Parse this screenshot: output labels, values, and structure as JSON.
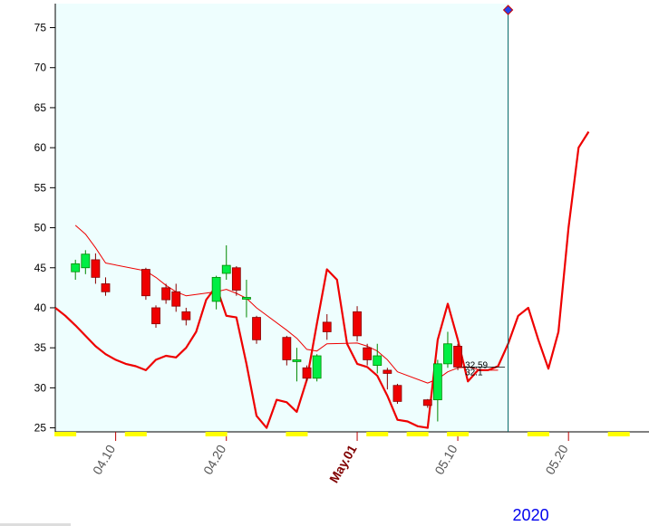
{
  "chart_data": {
    "type": "candlestick",
    "ylim": [
      24.5,
      78
    ],
    "yticks": [
      25,
      30,
      35,
      40,
      45,
      50,
      55,
      60,
      65,
      70,
      75
    ],
    "x_domain": [
      0,
      59
    ],
    "x_tick_labels": [
      {
        "x": 6,
        "label": "04.10",
        "highlight": false
      },
      {
        "x": 17,
        "label": "04.20",
        "highlight": false
      },
      {
        "x": 30,
        "label": "May.01",
        "highlight": true
      },
      {
        "x": 40,
        "label": "05.10",
        "highlight": false
      },
      {
        "x": 51,
        "label": "05.20",
        "highlight": false
      }
    ],
    "year_label": "2020",
    "shaded_until_x": 45,
    "cursor_x": 45,
    "price_labels": [
      "32.59",
      "32.1"
    ],
    "weekend_markers_x": [
      1,
      8,
      16,
      24,
      32,
      36,
      40,
      48,
      56
    ],
    "candles": [
      {
        "x": 2,
        "open": 44.5,
        "high": 46,
        "low": 43.5,
        "close": 45.5
      },
      {
        "x": 3,
        "open": 45,
        "high": 47.2,
        "low": 44.2,
        "close": 46.7
      },
      {
        "x": 4,
        "open": 46,
        "high": 46.8,
        "low": 43,
        "close": 43.8
      },
      {
        "x": 5,
        "open": 43,
        "high": 43.8,
        "low": 41.5,
        "close": 42
      },
      {
        "x": 9,
        "open": 44.8,
        "high": 45,
        "low": 41,
        "close": 41.5
      },
      {
        "x": 10,
        "open": 40,
        "high": 40.3,
        "low": 37.5,
        "close": 38
      },
      {
        "x": 11,
        "open": 42.5,
        "high": 43,
        "low": 40.5,
        "close": 41
      },
      {
        "x": 12,
        "open": 42,
        "high": 43,
        "low": 39.5,
        "close": 40.2
      },
      {
        "x": 13,
        "open": 39.5,
        "high": 40,
        "low": 37.8,
        "close": 38.5
      },
      {
        "x": 16,
        "open": 40.8,
        "high": 44,
        "low": 39.8,
        "close": 43.8
      },
      {
        "x": 17,
        "open": 44.3,
        "high": 47.8,
        "low": 43.5,
        "close": 45.3
      },
      {
        "x": 18,
        "open": 45,
        "high": 45.2,
        "low": 41.5,
        "close": 42.2
      },
      {
        "x": 19,
        "open": 41.2,
        "high": 43.5,
        "low": 38.8,
        "close": 41.3
      },
      {
        "x": 20,
        "open": 38.8,
        "high": 39,
        "low": 35.5,
        "close": 36
      },
      {
        "x": 23,
        "open": 36.3,
        "high": 36.5,
        "low": 32.8,
        "close": 33.5
      },
      {
        "x": 24,
        "open": 33.4,
        "high": 35,
        "low": 30.8,
        "close": 33.5
      },
      {
        "x": 25,
        "open": 32.5,
        "high": 32.8,
        "low": 30.8,
        "close": 31.2
      },
      {
        "x": 26,
        "open": 31.2,
        "high": 34.2,
        "low": 30.8,
        "close": 34
      },
      {
        "x": 27,
        "open": 38.2,
        "high": 39.2,
        "low": 36,
        "close": 37
      },
      {
        "x": 30,
        "open": 39.5,
        "high": 40.2,
        "low": 35.8,
        "close": 36.5
      },
      {
        "x": 31,
        "open": 35,
        "high": 35.5,
        "low": 32.8,
        "close": 33.5
      },
      {
        "x": 32,
        "open": 32.8,
        "high": 35.5,
        "low": 31.8,
        "close": 34
      },
      {
        "x": 33,
        "open": 32.2,
        "high": 32.5,
        "low": 29.8,
        "close": 31.8
      },
      {
        "x": 34,
        "open": 30.3,
        "high": 30.5,
        "low": 28,
        "close": 28.3
      },
      {
        "x": 37,
        "open": 28.5,
        "high": 28.6,
        "low": 27.5,
        "close": 27.8
      },
      {
        "x": 38,
        "open": 28.5,
        "high": 33.5,
        "low": 25.8,
        "close": 33
      },
      {
        "x": 39,
        "open": 33,
        "high": 37,
        "low": 32.5,
        "close": 35.5
      },
      {
        "x": 40,
        "open": 35.2,
        "high": 35.5,
        "low": 32.2,
        "close": 32.6
      }
    ],
    "series": [
      {
        "color": "#ee0000",
        "width": 1,
        "points": [
          [
            2,
            50.3
          ],
          [
            3,
            49.2
          ],
          [
            4,
            47.5
          ],
          [
            5,
            45.6
          ],
          [
            9,
            44.6
          ],
          [
            10,
            43.8
          ],
          [
            11,
            42.8
          ],
          [
            12,
            42
          ],
          [
            13,
            41.5
          ],
          [
            16,
            42
          ],
          [
            17,
            42.3
          ],
          [
            18,
            41.8
          ],
          [
            19,
            41.2
          ],
          [
            20,
            40
          ],
          [
            23,
            37.2
          ],
          [
            24,
            36.2
          ],
          [
            25,
            34.8
          ],
          [
            26,
            34.6
          ],
          [
            27,
            35.5
          ],
          [
            30,
            35.6
          ],
          [
            31,
            35.2
          ],
          [
            32,
            34.6
          ],
          [
            33,
            33.5
          ],
          [
            34,
            32
          ],
          [
            37,
            30.6
          ],
          [
            38,
            31.1
          ],
          [
            39,
            32
          ],
          [
            40,
            32.5
          ],
          [
            41,
            32.6
          ],
          [
            42,
            32.3
          ],
          [
            43,
            32.2
          ],
          [
            44,
            32.2
          ]
        ]
      },
      {
        "color": "#ee0000",
        "width": 2.2,
        "points": [
          [
            0,
            40
          ],
          [
            1,
            39
          ],
          [
            2,
            37.8
          ],
          [
            3,
            36.5
          ],
          [
            4,
            35.2
          ],
          [
            5,
            34.2
          ],
          [
            6,
            33.5
          ],
          [
            7,
            33
          ],
          [
            8,
            32.7
          ],
          [
            9,
            32.2
          ],
          [
            10,
            33.5
          ],
          [
            11,
            34
          ],
          [
            12,
            33.8
          ],
          [
            13,
            35
          ],
          [
            14,
            37
          ],
          [
            15,
            41
          ],
          [
            16,
            42.7
          ],
          [
            17,
            39
          ],
          [
            18,
            38.8
          ],
          [
            19,
            33
          ],
          [
            20,
            26.5
          ],
          [
            21,
            25
          ],
          [
            22,
            28.5
          ],
          [
            23,
            28.2
          ],
          [
            24,
            27
          ],
          [
            25,
            31
          ],
          [
            26,
            38
          ],
          [
            27,
            44.8
          ],
          [
            28,
            43.5
          ],
          [
            29,
            35.5
          ],
          [
            30,
            33
          ],
          [
            31,
            32.6
          ],
          [
            32,
            31.5
          ],
          [
            33,
            29
          ],
          [
            34,
            26
          ],
          [
            35,
            25.8
          ],
          [
            36,
            25.2
          ],
          [
            37,
            25
          ],
          [
            38,
            36
          ],
          [
            39,
            40.5
          ],
          [
            40,
            36
          ],
          [
            41,
            30.8
          ],
          [
            42,
            32.2
          ],
          [
            43,
            32.2
          ],
          [
            44,
            32.7
          ],
          [
            45,
            35.5
          ],
          [
            46,
            39
          ],
          [
            47,
            40
          ],
          [
            48,
            36
          ],
          [
            49,
            32.4
          ],
          [
            50,
            37
          ],
          [
            51,
            50
          ],
          [
            52,
            60
          ],
          [
            53,
            62
          ]
        ]
      }
    ]
  }
}
